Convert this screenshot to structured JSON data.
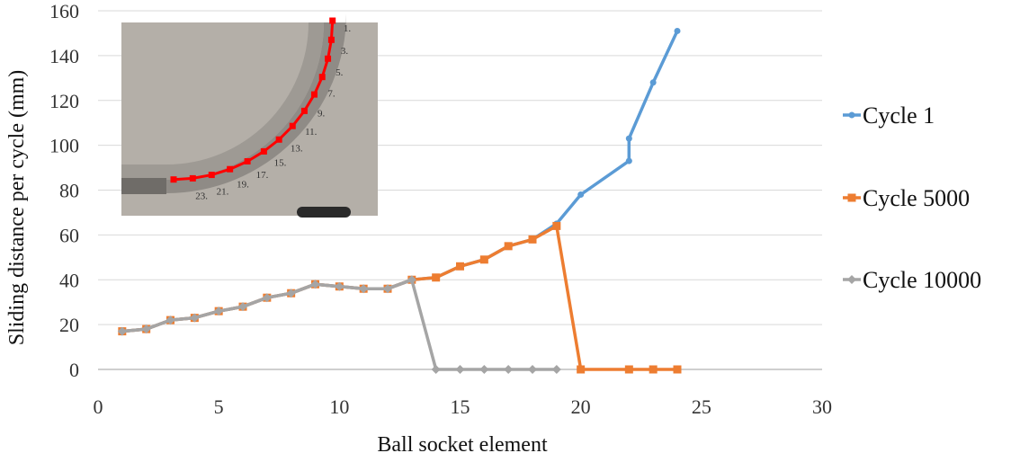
{
  "chart_data": {
    "type": "line",
    "title": "",
    "xlabel": "Ball socket element",
    "ylabel": "Sliding distance per cycle (mm)",
    "xlim": [
      0,
      30
    ],
    "ylim": [
      0,
      160
    ],
    "xticks": [
      0,
      5,
      10,
      15,
      20,
      25,
      30
    ],
    "yticks": [
      0,
      20,
      40,
      60,
      80,
      100,
      120,
      140,
      160
    ],
    "grid": "horizontal",
    "legend_position": "right",
    "series": [
      {
        "name": "Cycle 1",
        "color": "#5B9BD5",
        "marker": "circle",
        "points": [
          [
            1,
            17
          ],
          [
            2,
            18
          ],
          [
            3,
            22
          ],
          [
            4,
            23
          ],
          [
            5,
            26
          ],
          [
            6,
            28
          ],
          [
            7,
            32
          ],
          [
            8,
            34
          ],
          [
            9,
            38
          ],
          [
            10,
            37
          ],
          [
            11,
            36
          ],
          [
            12,
            36
          ],
          [
            13,
            40
          ],
          [
            14,
            41
          ],
          [
            15,
            46
          ],
          [
            16,
            49
          ],
          [
            17,
            55
          ],
          [
            18,
            58
          ],
          [
            19,
            65
          ],
          [
            20,
            78
          ],
          [
            22,
            93
          ],
          [
            22,
            103
          ],
          [
            23,
            128
          ],
          [
            24,
            151
          ]
        ]
      },
      {
        "name": "Cycle 5000",
        "color": "#ED7D31",
        "marker": "square",
        "points": [
          [
            1,
            17
          ],
          [
            2,
            18
          ],
          [
            3,
            22
          ],
          [
            4,
            23
          ],
          [
            5,
            26
          ],
          [
            6,
            28
          ],
          [
            7,
            32
          ],
          [
            8,
            34
          ],
          [
            9,
            38
          ],
          [
            10,
            37
          ],
          [
            11,
            36
          ],
          [
            12,
            36
          ],
          [
            13,
            40
          ],
          [
            14,
            41
          ],
          [
            15,
            46
          ],
          [
            16,
            49
          ],
          [
            17,
            55
          ],
          [
            18,
            58
          ],
          [
            19,
            64
          ],
          [
            20,
            0
          ],
          [
            22,
            0
          ],
          [
            23,
            0
          ],
          [
            24,
            0
          ]
        ]
      },
      {
        "name": "Cycle 10000",
        "color": "#A5A5A5",
        "marker": "diamond",
        "points": [
          [
            1,
            17
          ],
          [
            2,
            18
          ],
          [
            3,
            22
          ],
          [
            4,
            23
          ],
          [
            5,
            26
          ],
          [
            6,
            28
          ],
          [
            7,
            32
          ],
          [
            8,
            34
          ],
          [
            9,
            38
          ],
          [
            10,
            37
          ],
          [
            11,
            36
          ],
          [
            12,
            36
          ],
          [
            13,
            40
          ],
          [
            14,
            0
          ],
          [
            15,
            0
          ],
          [
            16,
            0
          ],
          [
            17,
            0
          ],
          [
            18,
            0
          ],
          [
            19,
            0
          ]
        ]
      }
    ]
  },
  "inset": {
    "labels": [
      "1.",
      "3.",
      "5.",
      "7.",
      "9.",
      "11.",
      "13.",
      "15.",
      "17.",
      "19.",
      "21.",
      "23."
    ],
    "track_color": "#FF0000",
    "background_color": "#B4AFA8"
  }
}
